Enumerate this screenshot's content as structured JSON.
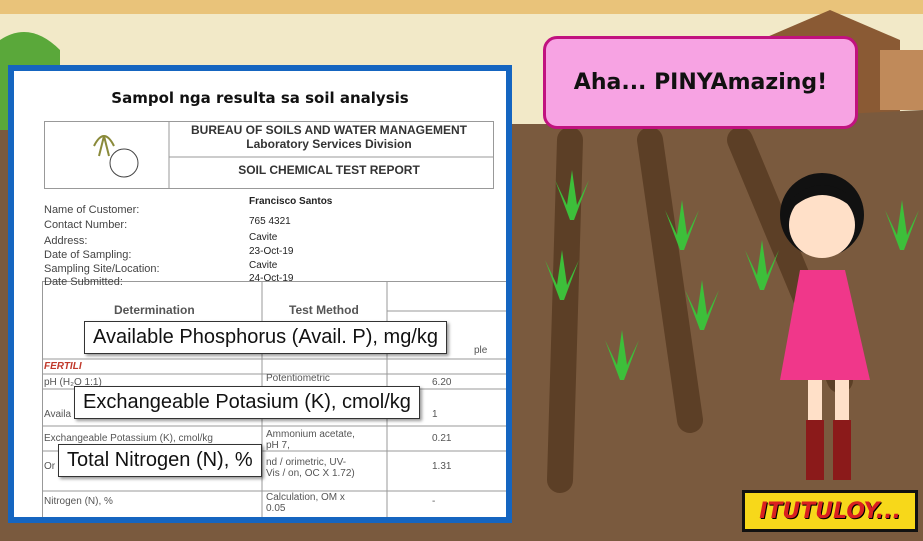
{
  "document": {
    "title": "Sampol nga resulta sa soil analysis",
    "header": {
      "agency": "BUREAU OF SOILS AND WATER MANAGEMENT",
      "division": "Laboratory Services Division",
      "report": "SOIL CHEMICAL TEST REPORT"
    },
    "fields": [
      {
        "label": "Name of Customer:",
        "value": "Francisco Santos"
      },
      {
        "label": "Contact Number:",
        "value": "765 4321"
      },
      {
        "label": "Address:",
        "value": "Cavite"
      },
      {
        "label": "Date of Sampling:",
        "value": "23-Oct-19"
      },
      {
        "label": "Sampling Site/Location:",
        "value": "Cavite"
      },
      {
        "label": "Date Submitted:",
        "value": "24-Oct-19"
      }
    ],
    "table": {
      "headers": [
        "Determination",
        "Test Method",
        "ple"
      ],
      "section": "FERTILI",
      "rows": [
        {
          "determination": "pH (H₂O 1:1)",
          "method": "Potentiometric",
          "result": "6.20"
        },
        {
          "determination": "Availa",
          "result": "1"
        },
        {
          "determination": "Exchangeable Potassium (K), cmol/kg",
          "method": "Ammonium acetate, pH 7,",
          "result": "0.21"
        },
        {
          "determination": "Or",
          "method": "nd / orimetric, UV-Vis / on, OC X 1.72)",
          "result": "1.31"
        },
        {
          "determination": "Nitrogen (N), %",
          "method": "Calculation, OM x 0.05",
          "result": "-"
        }
      ]
    },
    "callouts": [
      "Available Phosphorus (Avail. P), mg/kg",
      "Exchangeable Potasium (K), cmol/kg",
      "Total Nitrogen (N), %"
    ]
  },
  "speech": "Aha... PINYAmazing!",
  "badge": "ITUTULOY..."
}
